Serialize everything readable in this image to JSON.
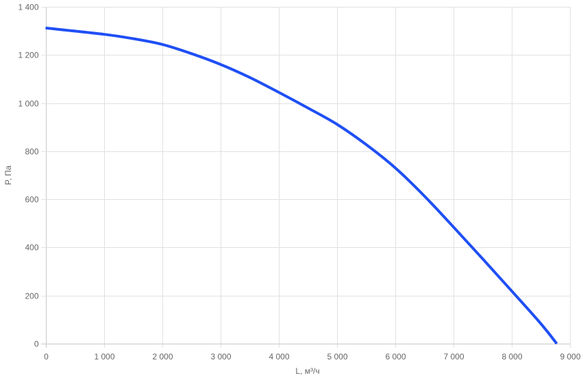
{
  "chart_data": {
    "type": "line",
    "title": "",
    "xlabel": "L, м³/ч",
    "ylabel": "P, Па",
    "xlim": [
      0,
      9000
    ],
    "ylim": [
      0,
      1400
    ],
    "x_ticks": [
      "0",
      "1 000",
      "2 000",
      "3 000",
      "4 000",
      "5 000",
      "6 000",
      "7 000",
      "8 000",
      "9 000"
    ],
    "y_ticks": [
      "0",
      "200",
      "400",
      "600",
      "800",
      "1 000",
      "1 200",
      "1 400"
    ],
    "grid": true,
    "legend": "none",
    "series": [
      {
        "color": "#1f4ff5",
        "x": [
          0,
          1000,
          1500,
          2000,
          2500,
          3000,
          3500,
          4000,
          4500,
          5000,
          5500,
          6000,
          6500,
          7000,
          7500,
          8000,
          8500,
          8773
        ],
        "y": [
          1312,
          1286,
          1268,
          1244,
          1206,
          1161,
          1107,
          1045,
          980,
          912,
          828,
          731,
          614,
          485,
          353,
          219,
          83,
          0
        ]
      }
    ]
  }
}
